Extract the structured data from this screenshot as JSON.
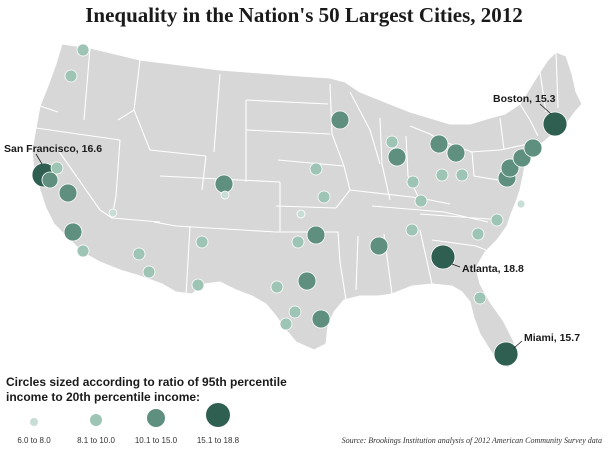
{
  "title": "Inequality in the Nation's 50 Largest Cities, 2012",
  "source": "Source: Brookings Institution analysis of 2012 American Community Survey data",
  "legend": {
    "title_line1": "Circles sized according to ratio of 95th percentile",
    "title_line2": "income to 20th percentile income:",
    "items": [
      {
        "label": "6.0 to 8.0"
      },
      {
        "label": "8.1 to 10.0"
      },
      {
        "label": "10.1 to 15.0"
      },
      {
        "label": "15.1 to 18.8"
      }
    ]
  },
  "callouts": {
    "san_francisco": "San Francisco, 16.6",
    "boston": "Boston, 15.3",
    "atlanta": "Atlanta, 18.8",
    "miami": "Miami, 15.7"
  },
  "colors": {
    "land": "#d7d7d7",
    "state_border": "#ffffff",
    "class1": "#c8ddd6",
    "class2": "#9ec4b6",
    "class3": "#5f8f7f",
    "class4": "#2f5f50"
  }
}
